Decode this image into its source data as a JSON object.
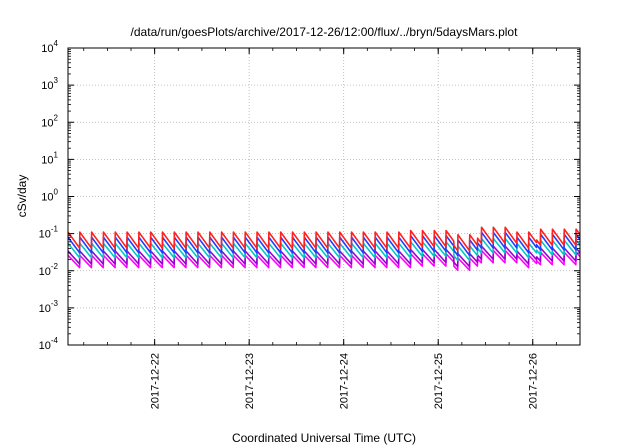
{
  "chart_data": {
    "type": "line",
    "title": "/data/run/goesPlots/archive/2017-12-26/12:00/flux/../bryn/5daysMars.plot",
    "xlabel": "Coordinated Universal Time (UTC)",
    "ylabel": "cSv/day",
    "y_scale": "log",
    "ylim": [
      0.0001,
      10000
    ],
    "y_ticks": [
      {
        "base": "10",
        "exp": "-4"
      },
      {
        "base": "10",
        "exp": "-3"
      },
      {
        "base": "10",
        "exp": "-2"
      },
      {
        "base": "10",
        "exp": "-1"
      },
      {
        "base": "10",
        "exp": "0"
      },
      {
        "base": "10",
        "exp": "1"
      },
      {
        "base": "10",
        "exp": "2"
      },
      {
        "base": "10",
        "exp": "3"
      },
      {
        "base": "10",
        "exp": "4"
      }
    ],
    "xlim": [
      "2017-12-21 02:00",
      "2017-12-26 12:00"
    ],
    "x_ticks": [
      "2017-12-22",
      "2017-12-23",
      "2017-12-24",
      "2017-12-25",
      "2017-12-26"
    ],
    "grid": true,
    "legend": "none",
    "sawtooth_cycles_per_day": 8,
    "series": [
      {
        "color": "#ff00ff",
        "low": 0.012,
        "high": 0.026
      },
      {
        "color": "#9b00d0",
        "low": 0.015,
        "high": 0.034
      },
      {
        "color": "#00c8c8",
        "low": 0.022,
        "high": 0.055
      },
      {
        "color": "#1f3cff",
        "low": 0.03,
        "high": 0.08
      },
      {
        "color": "#ff2020",
        "low": 0.04,
        "high": 0.11
      }
    ],
    "level_shifts": [
      {
        "start": "2017-12-20 00:00",
        "factor": 1.0
      },
      {
        "start": "2017-12-24 17:00",
        "factor": 1.1
      },
      {
        "start": "2017-12-25 04:00",
        "factor": 0.85
      },
      {
        "start": "2017-12-25 10:00",
        "factor": 1.35
      },
      {
        "start": "2017-12-25 20:00",
        "factor": 1.0
      },
      {
        "start": "2017-12-26 01:00",
        "factor": 1.2
      }
    ]
  }
}
